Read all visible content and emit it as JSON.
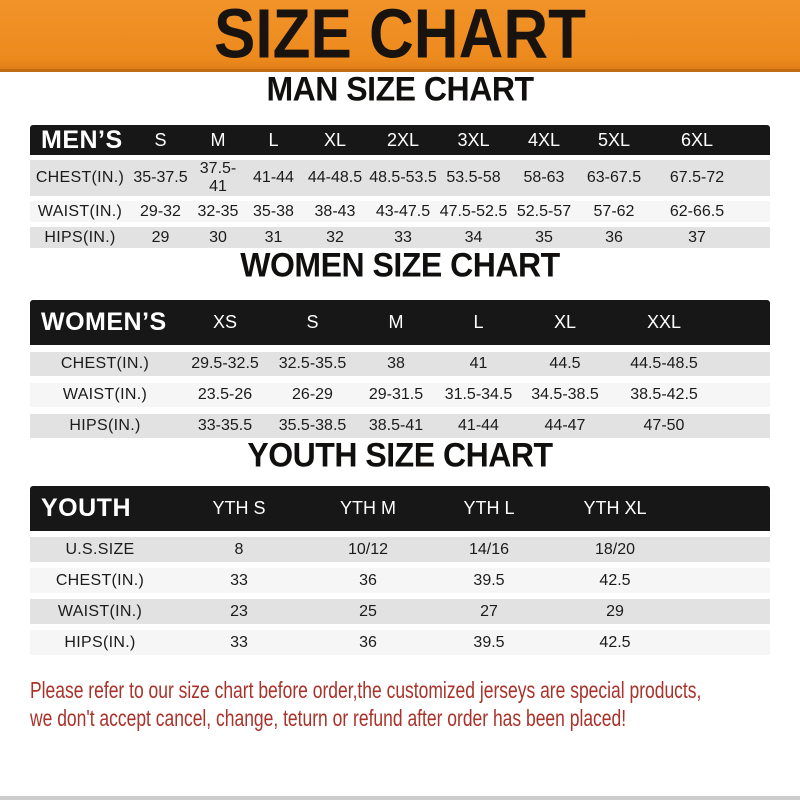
{
  "banner": {
    "title": "SIZE CHART"
  },
  "sections": [
    {
      "heading": "MAN SIZE CHART",
      "table": {
        "label": "MEN’S",
        "columns": [
          "S",
          "M",
          "L",
          "XL",
          "2XL",
          "3XL",
          "4XL",
          "5XL",
          "6XL"
        ],
        "rows": [
          {
            "label": "CHEST(IN.)",
            "values": [
              "35-37.5",
              "37.5-41",
              "41-44",
              "44-48.5",
              "48.5-53.5",
              "53.5-58",
              "58-63",
              "63-67.5",
              "67.5-72"
            ]
          },
          {
            "label": "WAIST(IN.)",
            "values": [
              "29-32",
              "32-35",
              "35-38",
              "38-43",
              "43-47.5",
              "47.5-52.5",
              "52.5-57",
              "57-62",
              "62-66.5"
            ]
          },
          {
            "label": "HIPS(IN.)",
            "values": [
              "29",
              "30",
              "31",
              "32",
              "33",
              "34",
              "35",
              "36",
              "37"
            ]
          }
        ]
      }
    },
    {
      "heading": "WOMEN SIZE CHART",
      "table": {
        "label": "WOMEN’S",
        "columns": [
          "XS",
          "S",
          "M",
          "L",
          "XL",
          "XXL"
        ],
        "rows": [
          {
            "label": "CHEST(IN.)",
            "values": [
              "29.5-32.5",
              "32.5-35.5",
              "38",
              "41",
              "44.5",
              "44.5-48.5"
            ]
          },
          {
            "label": "WAIST(IN.)",
            "values": [
              "23.5-26",
              "26-29",
              "29-31.5",
              "31.5-34.5",
              "34.5-38.5",
              "38.5-42.5"
            ]
          },
          {
            "label": "HIPS(IN.)",
            "values": [
              "33-35.5",
              "35.5-38.5",
              "38.5-41",
              "41-44",
              "44-47",
              "47-50"
            ]
          }
        ]
      }
    },
    {
      "heading": "YOUTH SIZE CHART",
      "table": {
        "label": "YOUTH",
        "columns": [
          "YTH S",
          "YTH M",
          "YTH L",
          "YTH XL"
        ],
        "rows": [
          {
            "label": "U.S.SIZE",
            "values": [
              "8",
              "10/12",
              "14/16",
              "18/20"
            ]
          },
          {
            "label": "CHEST(IN.)",
            "values": [
              "33",
              "36",
              "39.5",
              "42.5"
            ]
          },
          {
            "label": "WAIST(IN.)",
            "values": [
              "23",
              "25",
              "27",
              "29"
            ]
          },
          {
            "label": "HIPS(IN.)",
            "values": [
              "33",
              "36",
              "39.5",
              "42.5"
            ]
          }
        ]
      }
    }
  ],
  "disclaimer": {
    "line1": "Please refer to our size chart before order,the customized jerseys are special products,",
    "line2": "we don't accept cancel, change, teturn or refund after order has been placed!"
  },
  "colors": {
    "banner_orange": "#ee8c22",
    "banner_border": "#bf6c12",
    "table_header_black": "#171717",
    "row_shade_gray": "#e2e2e2",
    "row_plain_gray": "#f6f6f6",
    "disclaimer_red": "#a9332a",
    "bottom_strip_gray": "#cccccc"
  }
}
